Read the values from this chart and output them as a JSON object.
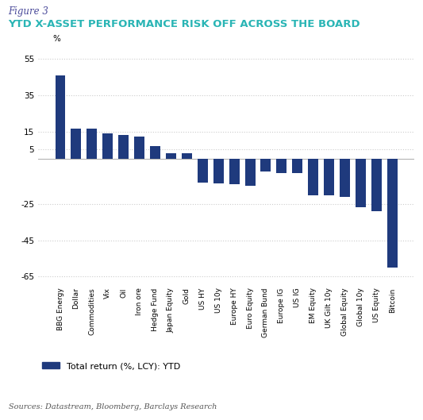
{
  "figure_label": "Figure 3",
  "title": "YTD X-ASSET PERFORMANCE RISK OFF ACROSS THE BOARD",
  "categories": [
    "BBG Energy",
    "Dollar",
    "Commodities",
    "Vix",
    "Oil",
    "Iron ore",
    "Hedge Fund",
    "Japan Equity",
    "Gold",
    "US HY",
    "US 10y",
    "Europe HY",
    "Euro Equity",
    "German Bund",
    "Europe IG",
    "US IG",
    "EM Equity",
    "UK Gilt 10y",
    "Global Equity",
    "Global 10y",
    "US Equity",
    "Bitcoin"
  ],
  "values": [
    46,
    16.5,
    16.5,
    14,
    13,
    12,
    7,
    3,
    3,
    -13,
    -13.5,
    -14,
    -15,
    -7,
    -8,
    -8,
    -20,
    -20,
    -21,
    -27,
    -29,
    -60
  ],
  "bar_color": "#1f3a7d",
  "ylim": [
    -70,
    62
  ],
  "yticks": [
    -65,
    -45,
    -25,
    5,
    15,
    35,
    55
  ],
  "ylabel": "%",
  "legend_label": "Total return (%, LCY): YTD",
  "source_text": "Sources: Datastream, Bloomberg, Barclays Research",
  "grid_color": "#cccccc",
  "background_color": "#ffffff",
  "title_color": "#2ab5b5",
  "figure_label_color": "#4a4a9a",
  "source_color": "#555555"
}
